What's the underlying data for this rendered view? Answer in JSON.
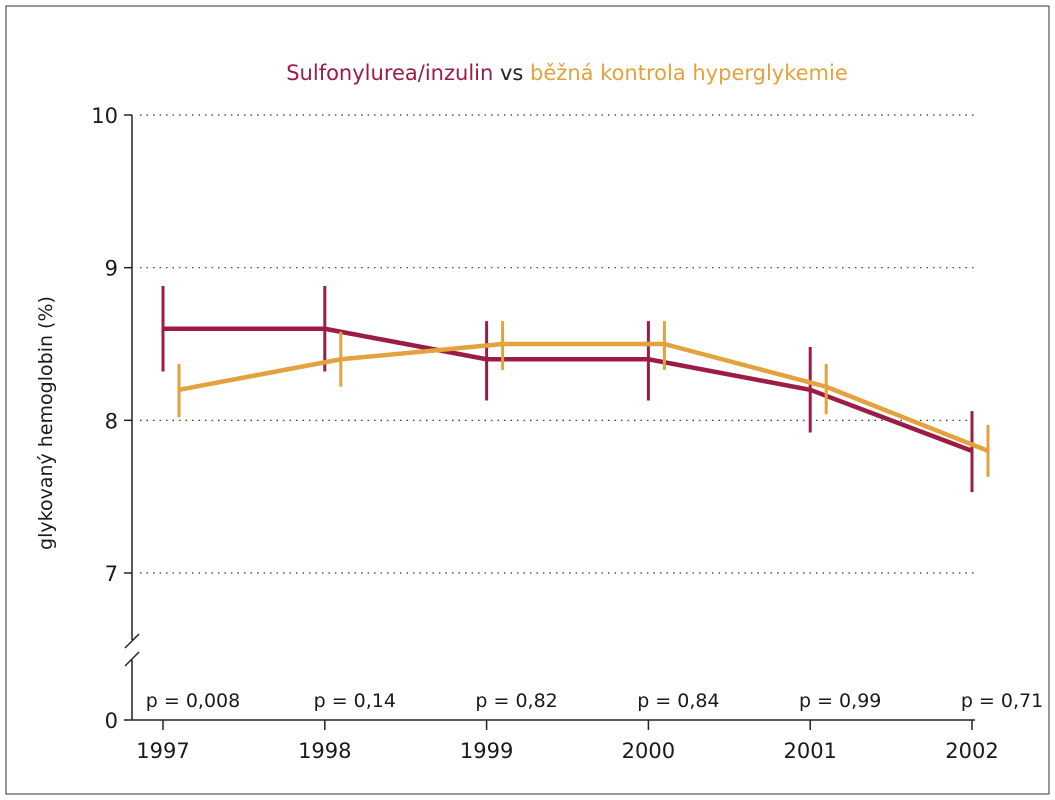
{
  "colors": {
    "series1": "#9b1c45",
    "series2": "#e3a23d",
    "title_vs": "#222222",
    "axis": "#222222",
    "frame": "#555555",
    "grid": "#333333"
  },
  "chart_data": {
    "type": "line",
    "title_parts": {
      "series1": "Sulfonylurea/inzulin",
      "vs": " vs ",
      "series2": "běžná kontrola hyperglykemie"
    },
    "ylabel": "glykovaný hemoglobin (%)",
    "xlabel": "",
    "x": [
      "1997",
      "1998",
      "1999",
      "2000",
      "2001",
      "2002"
    ],
    "y_ticks": [
      "10",
      "9",
      "8",
      "7",
      "0"
    ],
    "y_tick_values": [
      10,
      9,
      8,
      7,
      0
    ],
    "ylim": [
      6.0,
      10
    ],
    "axis_break": true,
    "grid": "horizontal dotted",
    "series": [
      {
        "key": "series1",
        "values": [
          8.6,
          8.6,
          8.4,
          8.4,
          8.2,
          7.8
        ],
        "err_low": [
          8.32,
          8.32,
          8.13,
          8.13,
          7.92,
          7.53
        ],
        "err_high": [
          8.88,
          8.88,
          8.65,
          8.65,
          8.48,
          8.06
        ],
        "x_offset": 0
      },
      {
        "key": "series2",
        "values": [
          8.2,
          8.4,
          8.5,
          8.5,
          8.22,
          7.8
        ],
        "err_low": [
          8.02,
          8.22,
          8.33,
          8.33,
          8.04,
          7.63
        ],
        "err_high": [
          8.37,
          8.58,
          8.65,
          8.65,
          8.37,
          7.97
        ],
        "x_offset": 1
      }
    ],
    "p_values": [
      "p = 0,008",
      "p = 0,14",
      "p = 0,82",
      "p = 0,84",
      "p = 0,99",
      "p = 0,71"
    ]
  }
}
